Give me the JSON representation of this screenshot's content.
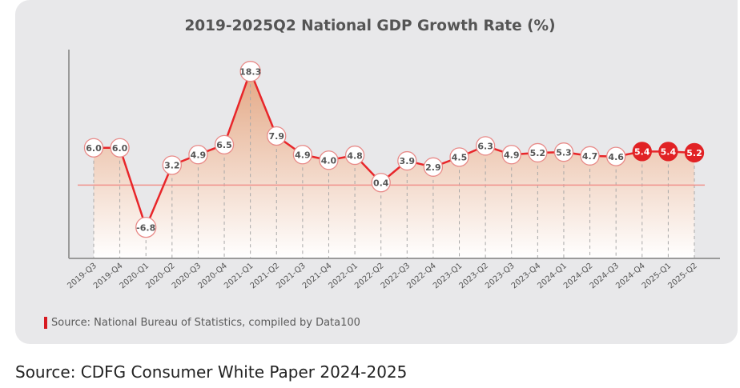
{
  "chart_data": {
    "type": "line",
    "title": "2019-2025Q2 National GDP Growth Rate (%)",
    "xlabel": "",
    "ylabel": "",
    "categories": [
      "2019-Q3",
      "2019-Q4",
      "2020-Q1",
      "2020-Q2",
      "2020-Q3",
      "2020-Q4",
      "2021-Q1",
      "2021-Q2",
      "2021-Q3",
      "2021-Q4",
      "2022-Q1",
      "2022-Q2",
      "2022-Q3",
      "2022-Q4",
      "2023-Q1",
      "2023-Q2",
      "2023-Q3",
      "2023-Q4",
      "2024-Q1",
      "2024-Q2",
      "2024-Q3",
      "2024-Q4",
      "2025-Q1",
      "2025-Q2"
    ],
    "series": [
      {
        "name": "National GDP Growth Rate (%)",
        "values": [
          6.0,
          6.0,
          -6.8,
          3.2,
          4.9,
          6.5,
          18.3,
          7.9,
          4.9,
          4.0,
          4.8,
          0.4,
          3.9,
          2.9,
          4.5,
          6.3,
          4.9,
          5.2,
          5.3,
          4.7,
          4.6,
          5.4,
          5.4,
          5.2
        ],
        "labels": [
          "6.0",
          "6.0",
          "-6.8",
          "3.2",
          "4.9",
          "6.5",
          "18.3",
          "7.9",
          "4.9",
          "4.0",
          "4.8",
          "0.4",
          "3.9",
          "2.9",
          "4.5",
          "6.3",
          "4.9",
          "5.2",
          "5.3",
          "4.7",
          "4.6",
          "5.4",
          "5.4",
          "5.2"
        ],
        "highlighted_categories": [
          "2024-Q4",
          "2025-Q1",
          "2025-Q2"
        ]
      }
    ],
    "ylim": [
      -11.8,
      21.8
    ],
    "reference_line": 0,
    "grid": false,
    "legend": "none",
    "colors": {
      "line": "#e8262a",
      "highlight_marker": "#e12225",
      "marker_fill": "#ffffff",
      "marker_border": "#e88a88",
      "label_text": "#555555",
      "area_top": "#e3a784",
      "area_bottom": "#ffffff",
      "zero_line": "#f0928c"
    }
  },
  "source_note": "Source: National Bureau of Statistics, compiled by Data100",
  "caption": "Source: CDFG Consumer White Paper 2024-2025"
}
